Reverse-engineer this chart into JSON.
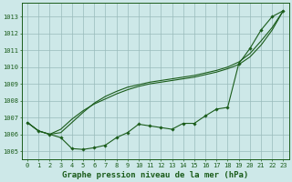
{
  "title": "Graphe pression niveau de la mer (hPa)",
  "background_color": "#cde8e8",
  "plot_bg_color": "#cde8e8",
  "grid_color": "#99bbbb",
  "line_color": "#1a5c1a",
  "marker_color": "#1a5c1a",
  "xlim": [
    -0.5,
    23.5
  ],
  "ylim": [
    1004.5,
    1013.8
  ],
  "yticks": [
    1005,
    1006,
    1007,
    1008,
    1009,
    1010,
    1011,
    1012,
    1013
  ],
  "xticks": [
    0,
    1,
    2,
    3,
    4,
    5,
    6,
    7,
    8,
    9,
    10,
    11,
    12,
    13,
    14,
    15,
    16,
    17,
    18,
    19,
    20,
    21,
    22,
    23
  ],
  "series1": [
    1006.7,
    1006.2,
    1006.0,
    1005.8,
    1005.15,
    1005.1,
    1005.2,
    1005.35,
    1005.8,
    1006.1,
    1006.6,
    1006.5,
    1006.4,
    1006.3,
    1006.65,
    1006.65,
    1007.1,
    1007.5,
    1007.6,
    1010.2,
    1011.1,
    1012.2,
    1013.0,
    1013.35
  ],
  "series2": [
    1006.7,
    1006.2,
    1006.0,
    1006.3,
    1006.9,
    1007.4,
    1007.8,
    1008.1,
    1008.4,
    1008.65,
    1008.85,
    1009.0,
    1009.1,
    1009.2,
    1009.3,
    1009.4,
    1009.55,
    1009.7,
    1009.9,
    1010.15,
    1010.6,
    1011.3,
    1012.2,
    1013.35
  ],
  "series3": [
    1006.7,
    1006.2,
    1006.0,
    1006.1,
    1006.7,
    1007.3,
    1007.85,
    1008.25,
    1008.55,
    1008.8,
    1008.95,
    1009.1,
    1009.2,
    1009.3,
    1009.4,
    1009.5,
    1009.65,
    1009.8,
    1010.0,
    1010.3,
    1010.8,
    1011.55,
    1012.35,
    1013.35
  ],
  "title_fontsize": 6.5,
  "tick_fontsize": 5.0
}
